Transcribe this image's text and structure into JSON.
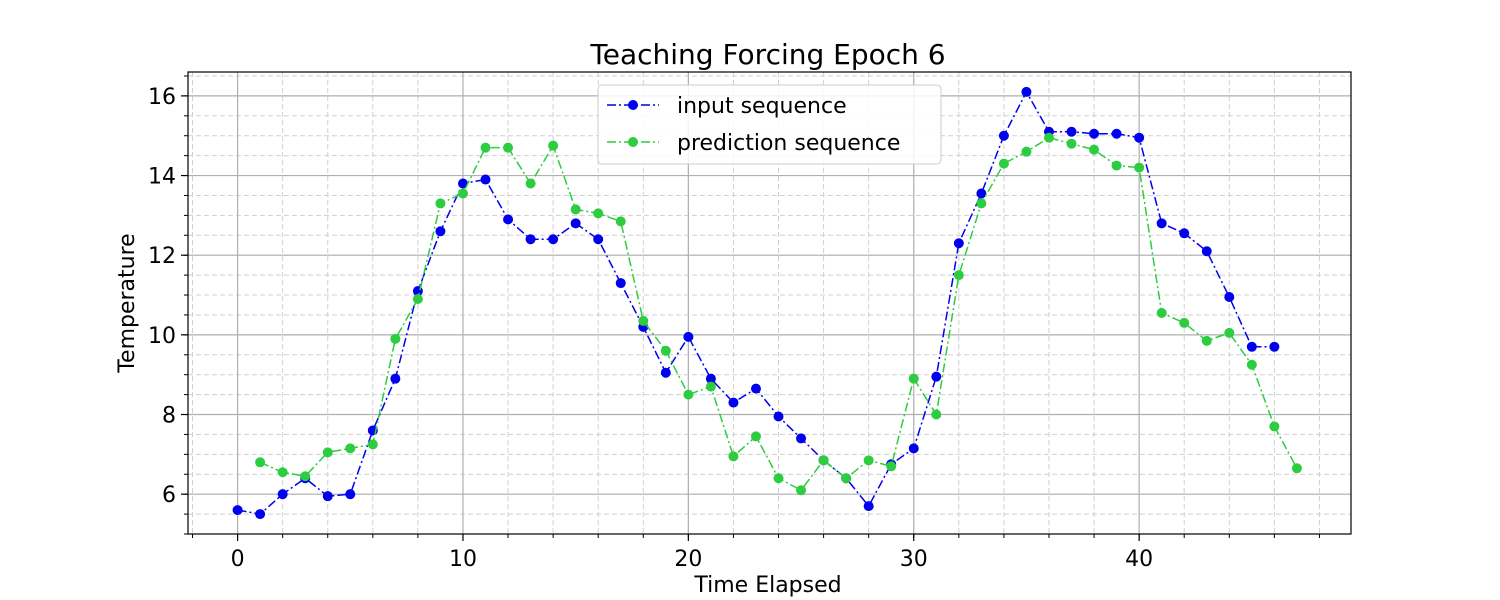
{
  "chart_data": {
    "type": "line",
    "title": "Teaching Forcing   Epoch 6",
    "xlabel": "Time Elapsed",
    "ylabel": "Temperature",
    "xlim": [
      -2.2,
      49.4
    ],
    "ylim": [
      5.0,
      16.6
    ],
    "xticks": [
      0,
      10,
      20,
      30,
      40
    ],
    "yticks": [
      6,
      8,
      10,
      12,
      14,
      16
    ],
    "x_minor_step": 2,
    "y_minor_step": 0.5,
    "grid": true,
    "legend_position": "top-center",
    "series": [
      {
        "name": "input sequence",
        "color": "#0000ee",
        "style": "dash-dot",
        "marker": "circle",
        "x": [
          0,
          1,
          2,
          3,
          4,
          5,
          6,
          7,
          8,
          9,
          10,
          11,
          12,
          13,
          14,
          15,
          16,
          17,
          18,
          19,
          20,
          21,
          22,
          23,
          24,
          25,
          26,
          27,
          28,
          29,
          30,
          31,
          32,
          33,
          34,
          35,
          36,
          37,
          38,
          39,
          40,
          41,
          42,
          43,
          44,
          45,
          46
        ],
        "values": [
          5.6,
          5.5,
          6.0,
          6.4,
          5.95,
          6.0,
          7.6,
          8.9,
          11.1,
          12.6,
          13.8,
          13.9,
          12.9,
          12.4,
          12.4,
          12.8,
          12.4,
          11.3,
          10.2,
          9.05,
          9.95,
          8.9,
          8.3,
          8.65,
          7.95,
          7.4,
          6.85,
          6.4,
          5.7,
          6.75,
          7.15,
          8.95,
          12.3,
          13.55,
          15.0,
          16.1,
          15.1,
          15.1,
          15.05,
          15.05,
          14.95,
          12.8,
          12.55,
          12.1,
          10.95,
          9.7,
          9.7
        ]
      },
      {
        "name": "prediction sequence",
        "color": "#2ecc40",
        "style": "dash-dot",
        "marker": "circle",
        "x": [
          1,
          2,
          3,
          4,
          5,
          6,
          7,
          8,
          9,
          10,
          11,
          12,
          13,
          14,
          15,
          16,
          17,
          18,
          19,
          20,
          21,
          22,
          23,
          24,
          25,
          26,
          27,
          28,
          29,
          30,
          31,
          32,
          33,
          34,
          35,
          36,
          37,
          38,
          39,
          40,
          41,
          42,
          43,
          44,
          45,
          46,
          47
        ],
        "values": [
          6.8,
          6.55,
          6.45,
          7.05,
          7.15,
          7.25,
          9.9,
          10.9,
          13.3,
          13.55,
          14.7,
          14.7,
          13.8,
          14.75,
          13.15,
          13.05,
          12.85,
          10.35,
          9.6,
          8.5,
          8.7,
          6.95,
          7.45,
          6.4,
          6.1,
          6.85,
          6.4,
          6.85,
          6.7,
          8.9,
          8.0,
          11.5,
          13.3,
          14.3,
          14.6,
          14.95,
          14.8,
          14.65,
          14.25,
          14.2,
          10.55,
          10.3,
          9.85,
          10.05,
          9.25,
          7.7,
          6.65
        ]
      }
    ]
  }
}
